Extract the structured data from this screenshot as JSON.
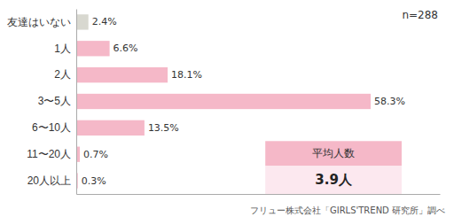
{
  "chart_data": {
    "type": "bar",
    "orientation": "horizontal",
    "categories": [
      "友達はいない",
      "1人",
      "2人",
      "3〜5人",
      "6〜10人",
      "11〜20人",
      "20人以上"
    ],
    "values": [
      2.4,
      6.6,
      18.1,
      58.3,
      13.5,
      0.7,
      0.3
    ],
    "value_labels": [
      "2.4%",
      "6.6%",
      "18.1%",
      "58.3%",
      "13.5%",
      "0.7%",
      "0.3%"
    ],
    "data_labels": true,
    "colors": [
      "#d8d8d0",
      "#f5b8c8",
      "#f5b8c8",
      "#f5b8c8",
      "#f5b8c8",
      "#f5b8c8",
      "#f5b8c8"
    ],
    "xlim": [
      0,
      72
    ],
    "tick_labels": "y",
    "grid": false,
    "annotations": [
      {
        "text": "n=288"
      },
      {
        "text": "平均人数",
        "color": "#f5b8c8"
      },
      {
        "text": "3.9人",
        "color": "#fce8ef"
      },
      {
        "text": "フリュー株式会社「GIRLS'TREND 研究所」調べ"
      }
    ]
  }
}
